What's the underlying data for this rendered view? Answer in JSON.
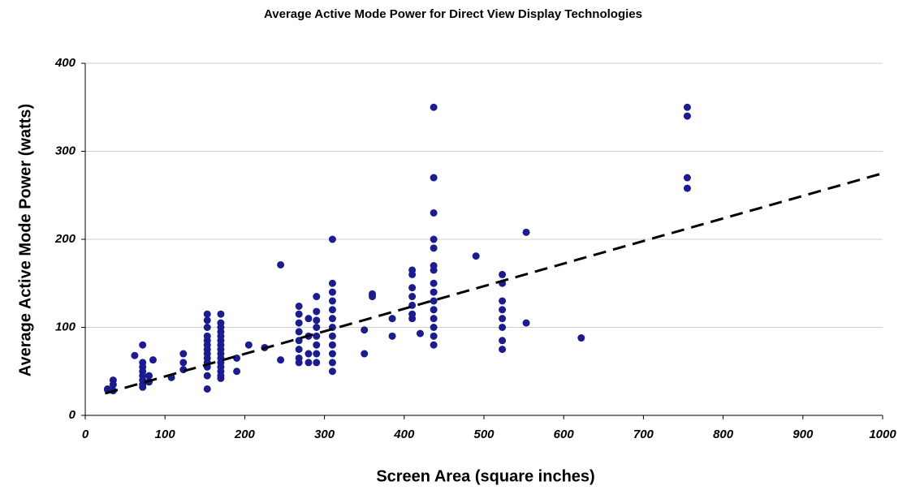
{
  "chart_data": {
    "type": "scatter",
    "title": "Average Active Mode Power for Direct View Display Technologies",
    "x_label": "Screen Area (square inches)",
    "y_label": "Average Active Mode Power (watts)",
    "color": "#1c1c8f",
    "x": [
      28,
      28,
      35,
      35,
      35,
      62,
      72,
      72,
      72,
      72,
      72,
      72,
      72,
      72,
      80,
      80,
      85,
      108,
      123,
      123,
      123,
      153,
      153,
      153,
      153,
      153,
      153,
      153,
      153,
      153,
      153,
      153,
      153,
      153,
      170,
      170,
      170,
      170,
      170,
      170,
      170,
      170,
      170,
      170,
      170,
      170,
      170,
      170,
      170,
      190,
      190,
      205,
      225,
      245,
      245,
      268,
      268,
      268,
      268,
      268,
      268,
      268,
      268,
      280,
      280,
      280,
      280,
      290,
      290,
      290,
      290,
      290,
      290,
      290,
      290,
      310,
      310,
      310,
      310,
      310,
      310,
      310,
      310,
      310,
      310,
      310,
      310,
      350,
      350,
      360,
      360,
      385,
      385,
      410,
      410,
      410,
      410,
      410,
      410,
      410,
      420,
      437,
      437,
      437,
      437,
      437,
      437,
      437,
      437,
      437,
      437,
      437,
      437,
      437,
      437,
      437,
      490,
      523,
      523,
      523,
      523,
      523,
      523,
      523,
      523,
      553,
      553,
      622,
      755,
      755,
      755,
      755
    ],
    "values": [
      29,
      30,
      40,
      35,
      28,
      68,
      80,
      60,
      55,
      50,
      45,
      40,
      35,
      32,
      38,
      45,
      63,
      43,
      70,
      60,
      52,
      115,
      108,
      100,
      90,
      85,
      80,
      75,
      70,
      65,
      60,
      55,
      45,
      30,
      115,
      105,
      100,
      95,
      90,
      85,
      80,
      75,
      70,
      65,
      60,
      55,
      50,
      45,
      42,
      65,
      50,
      80,
      77,
      171,
      63,
      124,
      115,
      105,
      95,
      85,
      75,
      65,
      60,
      110,
      90,
      70,
      60,
      135,
      118,
      108,
      100,
      90,
      80,
      70,
      60,
      200,
      150,
      140,
      130,
      120,
      110,
      100,
      90,
      80,
      70,
      60,
      50,
      97,
      70,
      138,
      135,
      110,
      90,
      165,
      160,
      145,
      135,
      125,
      115,
      110,
      93,
      350,
      270,
      230,
      200,
      190,
      170,
      165,
      150,
      140,
      130,
      120,
      110,
      100,
      90,
      80,
      181,
      160,
      150,
      130,
      120,
      110,
      100,
      85,
      75,
      208,
      105,
      88,
      350,
      340,
      270,
      258
    ],
    "trendline": {
      "x": [
        25,
        1000
      ],
      "y": [
        25,
        275
      ],
      "color": "#000000"
    },
    "xlim": [
      0,
      1000
    ],
    "xticks": [
      0,
      100,
      200,
      300,
      400,
      500,
      600,
      700,
      800,
      900,
      1000
    ],
    "ylim": [
      0,
      400
    ],
    "yticks": [
      0,
      100,
      200,
      300,
      400
    ],
    "grid": true
  }
}
